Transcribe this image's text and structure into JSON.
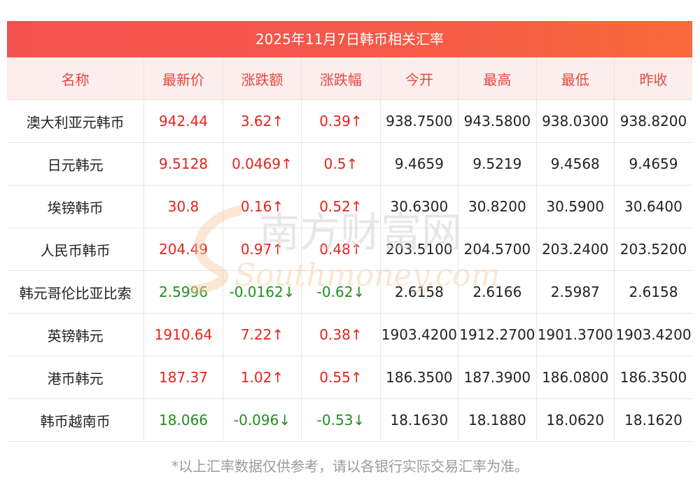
{
  "title": "2025年11月7日韩币相关汇率",
  "columns": [
    "名称",
    "最新价",
    "涨跌额",
    "涨跌幅",
    "今开",
    "最高",
    "最低",
    "昨收"
  ],
  "rows": [
    {
      "name": "澳大利亚元韩币",
      "latest": "942.44",
      "change": "3.62↑",
      "pct": "0.39↑",
      "open": "938.7500",
      "high": "943.5800",
      "low": "938.0300",
      "prev": "938.8200",
      "dir": "up"
    },
    {
      "name": "日元韩元",
      "latest": "9.5128",
      "change": "0.0469↑",
      "pct": "0.5↑",
      "open": "9.4659",
      "high": "9.5219",
      "low": "9.4568",
      "prev": "9.4659",
      "dir": "up"
    },
    {
      "name": "埃镑韩币",
      "latest": "30.8",
      "change": "0.16↑",
      "pct": "0.52↑",
      "open": "30.6300",
      "high": "30.8200",
      "low": "30.5900",
      "prev": "30.6400",
      "dir": "up"
    },
    {
      "name": "人民币韩币",
      "latest": "204.49",
      "change": "0.97↑",
      "pct": "0.48↑",
      "open": "203.5100",
      "high": "204.5700",
      "low": "203.2400",
      "prev": "203.5200",
      "dir": "up"
    },
    {
      "name": "韩元哥伦比亚比索",
      "latest": "2.5996",
      "change": "-0.0162↓",
      "pct": "-0.62↓",
      "open": "2.6158",
      "high": "2.6166",
      "low": "2.5987",
      "prev": "2.6158",
      "dir": "down"
    },
    {
      "name": "英镑韩元",
      "latest": "1910.64",
      "change": "7.22↑",
      "pct": "0.38↑",
      "open": "1903.4200",
      "high": "1912.2700",
      "low": "1901.3700",
      "prev": "1903.4200",
      "dir": "up"
    },
    {
      "name": "港币韩元",
      "latest": "187.37",
      "change": "1.02↑",
      "pct": "0.55↑",
      "open": "186.3500",
      "high": "187.3900",
      "low": "186.0800",
      "prev": "186.3500",
      "dir": "up"
    },
    {
      "name": "韩币越南币",
      "latest": "18.066",
      "change": "-0.096↓",
      "pct": "-0.53↓",
      "open": "18.1630",
      "high": "18.1880",
      "low": "18.0620",
      "prev": "18.1620",
      "dir": "down"
    }
  ],
  "watermark": {
    "cn": "南方财富网",
    "en": "Southmoney.com"
  },
  "footer": "*以上汇率数据仅供参考，请以各银行实际交易汇率为准。",
  "colors": {
    "header_bg_start": "#f3534f",
    "header_bg_end": "#f76a3b",
    "up": "#e5231c",
    "down": "#1e8f1e",
    "thead_text": "#e8453e",
    "thead_bg": "#fbeeed"
  }
}
